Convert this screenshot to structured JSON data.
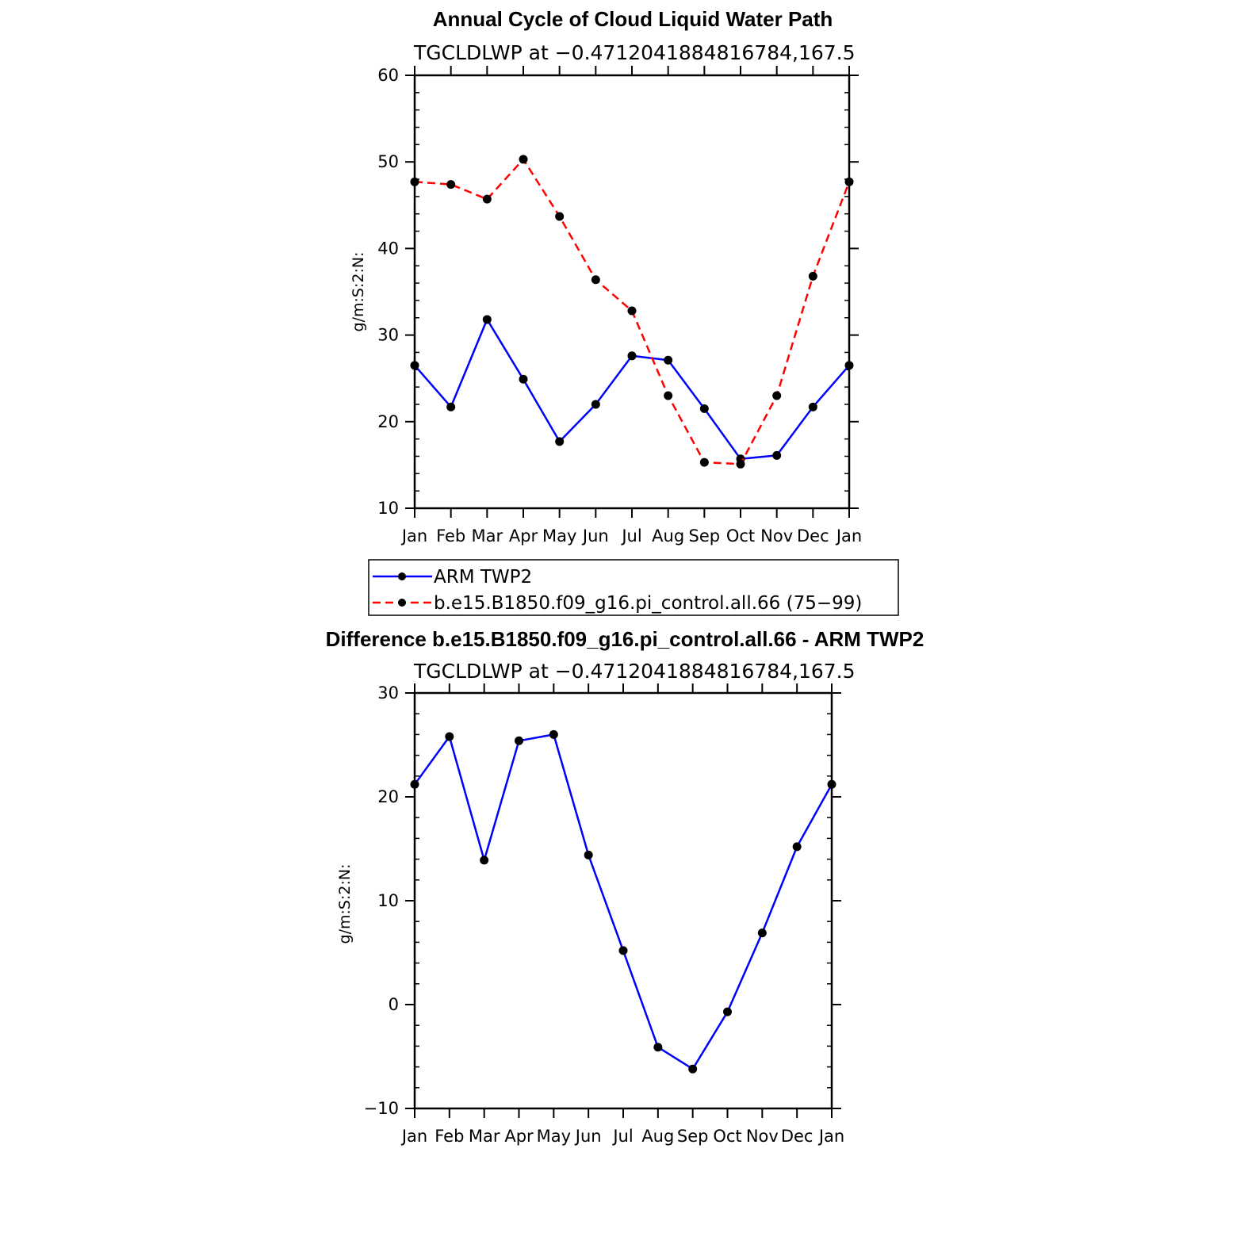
{
  "chart_data": [
    {
      "type": "line",
      "title": "Annual Cycle of Cloud Liquid Water Path",
      "subtitle": "TGCLDLWP at −0.4712041884816784,167.5",
      "xlabel": "",
      "ylabel": "g/m:S:2:N:",
      "categories": [
        "Jan",
        "Feb",
        "Mar",
        "Apr",
        "May",
        "Jun",
        "Jul",
        "Aug",
        "Sep",
        "Oct",
        "Nov",
        "Dec",
        "Jan"
      ],
      "ylim": [
        10,
        60
      ],
      "yticks": [
        "10",
        "20",
        "30",
        "40",
        "50",
        "60"
      ],
      "series": [
        {
          "name": "ARM TWP2",
          "color": "#0000ff",
          "dash": "solid",
          "values": [
            26.5,
            21.7,
            31.8,
            24.9,
            17.7,
            22.0,
            27.6,
            27.1,
            21.5,
            15.7,
            16.1,
            21.7,
            26.5
          ]
        },
        {
          "name": "b.e15.B1850.f09_g16.pi_control.all.66 (75−99)",
          "color": "#ff0000",
          "dash": "dashed",
          "values": [
            47.7,
            47.4,
            45.7,
            50.3,
            43.7,
            36.4,
            32.8,
            23.0,
            15.3,
            15.1,
            23.0,
            36.8,
            47.7
          ]
        }
      ],
      "legend": "below"
    },
    {
      "type": "line",
      "title": "Difference b.e15.B1850.f09_g16.pi_control.all.66 - ARM TWP2",
      "subtitle": "TGCLDLWP at −0.4712041884816784,167.5",
      "xlabel": "",
      "ylabel": "g/m:S:2:N:",
      "categories": [
        "Jan",
        "Feb",
        "Mar",
        "Apr",
        "May",
        "Jun",
        "Jul",
        "Aug",
        "Sep",
        "Oct",
        "Nov",
        "Dec",
        "Jan"
      ],
      "ylim": [
        -10,
        30
      ],
      "yticks": [
        "−10",
        "0",
        "10",
        "20",
        "30"
      ],
      "series": [
        {
          "color": "#0000ff",
          "dash": "solid",
          "values": [
            21.2,
            25.8,
            13.9,
            25.4,
            26.0,
            14.4,
            5.2,
            -4.1,
            -6.2,
            -0.7,
            6.9,
            15.2,
            21.2
          ]
        }
      ]
    }
  ]
}
